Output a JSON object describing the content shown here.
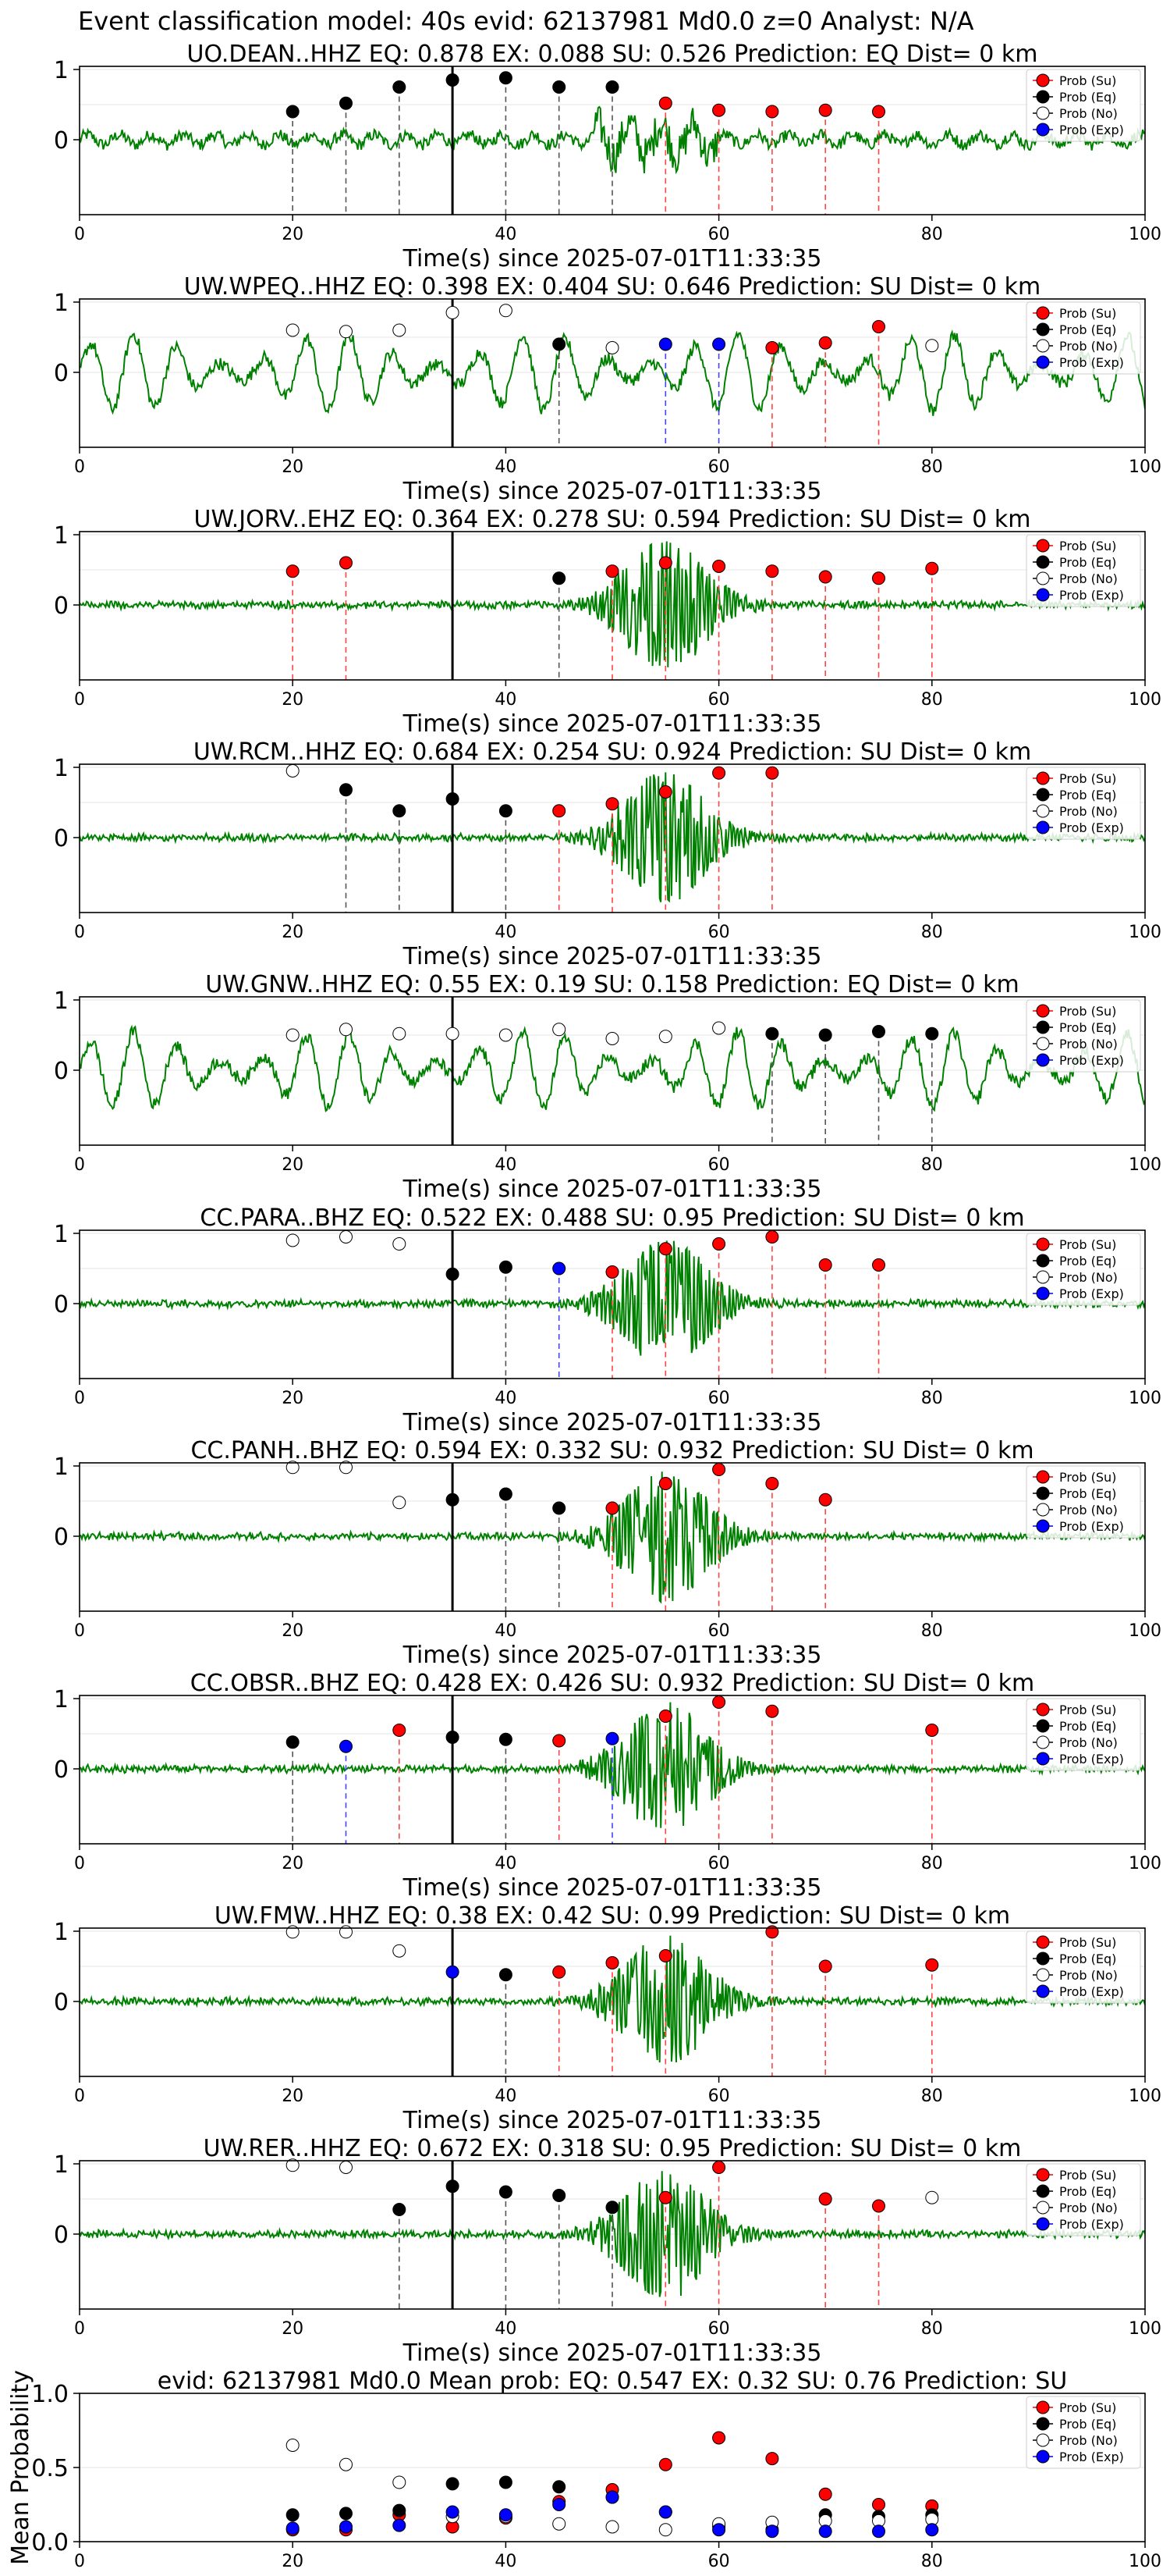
{
  "figure": {
    "suptitle": "Event classification model: 40s evid: 62137981 Md0.0 z=0 Analyst: N/A",
    "xlabel": "Time(s) since 2025-07-01T11:33:35",
    "legend": [
      "Prob (Su)",
      "Prob (Eq)",
      "Prob (No)",
      "Prob (Exp)"
    ],
    "colors": {
      "su": "#ff0000",
      "eq": "#000000",
      "no": "#ffffff",
      "exp": "#0000ff",
      "trace": "#008000"
    }
  },
  "chart_data": [
    {
      "type": "scatter",
      "station": "UO.DEAN..HHZ",
      "title": "UO.DEAN..HHZ   EQ: 0.878  EX: 0.088  SU: 0.526   Prediction: EQ    Dist= 0 km",
      "trace_style": "noisy",
      "xlim": [
        0,
        100
      ],
      "yticks": [
        0,
        1
      ],
      "xticks": [
        0,
        20,
        40,
        60,
        80,
        100
      ],
      "vline_solid": 35,
      "points": [
        {
          "x": 20,
          "y": 0.4,
          "c": "eq"
        },
        {
          "x": 25,
          "y": 0.52,
          "c": "eq"
        },
        {
          "x": 30,
          "y": 0.75,
          "c": "eq"
        },
        {
          "x": 35,
          "y": 0.85,
          "c": "eq"
        },
        {
          "x": 40,
          "y": 0.88,
          "c": "eq"
        },
        {
          "x": 45,
          "y": 0.75,
          "c": "eq"
        },
        {
          "x": 50,
          "y": 0.75,
          "c": "eq"
        },
        {
          "x": 55,
          "y": 0.52,
          "c": "su"
        },
        {
          "x": 60,
          "y": 0.42,
          "c": "su"
        },
        {
          "x": 65,
          "y": 0.4,
          "c": "su"
        },
        {
          "x": 70,
          "y": 0.42,
          "c": "su"
        },
        {
          "x": 75,
          "y": 0.4,
          "c": "su"
        }
      ]
    },
    {
      "type": "scatter",
      "station": "UW.WPEQ..HHZ",
      "title": "UW.WPEQ..HHZ   EQ: 0.398  EX: 0.404  SU: 0.646   Prediction: SU    Dist= 0 km",
      "trace_style": "oscillating",
      "xlim": [
        0,
        100
      ],
      "yticks": [
        0,
        1
      ],
      "xticks": [
        0,
        20,
        40,
        60,
        80,
        100
      ],
      "vline_solid": 35,
      "points": [
        {
          "x": 20,
          "y": 0.6,
          "c": "no"
        },
        {
          "x": 25,
          "y": 0.58,
          "c": "no"
        },
        {
          "x": 30,
          "y": 0.6,
          "c": "no"
        },
        {
          "x": 35,
          "y": 0.85,
          "c": "no"
        },
        {
          "x": 40,
          "y": 0.88,
          "c": "no"
        },
        {
          "x": 45,
          "y": 0.4,
          "c": "eq"
        },
        {
          "x": 50,
          "y": 0.35,
          "c": "no"
        },
        {
          "x": 55,
          "y": 0.4,
          "c": "exp"
        },
        {
          "x": 60,
          "y": 0.4,
          "c": "exp"
        },
        {
          "x": 65,
          "y": 0.35,
          "c": "su"
        },
        {
          "x": 70,
          "y": 0.42,
          "c": "su"
        },
        {
          "x": 75,
          "y": 0.65,
          "c": "su"
        },
        {
          "x": 80,
          "y": 0.38,
          "c": "no"
        }
      ]
    },
    {
      "type": "scatter",
      "station": "UW.JORV..EHZ",
      "title": "UW.JORV..EHZ   EQ: 0.364  EX: 0.278  SU: 0.594   Prediction: SU    Dist= 0 km",
      "trace_style": "burst",
      "xlim": [
        0,
        100
      ],
      "yticks": [
        0,
        1
      ],
      "xticks": [
        0,
        20,
        40,
        60,
        80,
        100
      ],
      "vline_solid": 35,
      "points": [
        {
          "x": 20,
          "y": 0.48,
          "c": "su"
        },
        {
          "x": 25,
          "y": 0.6,
          "c": "su"
        },
        {
          "x": 45,
          "y": 0.38,
          "c": "eq"
        },
        {
          "x": 50,
          "y": 0.48,
          "c": "su"
        },
        {
          "x": 55,
          "y": 0.6,
          "c": "su"
        },
        {
          "x": 60,
          "y": 0.55,
          "c": "su"
        },
        {
          "x": 65,
          "y": 0.48,
          "c": "su"
        },
        {
          "x": 70,
          "y": 0.4,
          "c": "su"
        },
        {
          "x": 75,
          "y": 0.38,
          "c": "su"
        },
        {
          "x": 80,
          "y": 0.52,
          "c": "su"
        }
      ]
    },
    {
      "type": "scatter",
      "station": "UW.RCM..HHZ",
      "title": "UW.RCM..HHZ   EQ: 0.684  EX: 0.254  SU: 0.924   Prediction: SU    Dist= 0 km",
      "trace_style": "burst",
      "xlim": [
        0,
        100
      ],
      "yticks": [
        0,
        1
      ],
      "xticks": [
        0,
        20,
        40,
        60,
        80,
        100
      ],
      "vline_solid": 35,
      "points": [
        {
          "x": 20,
          "y": 0.95,
          "c": "no"
        },
        {
          "x": 25,
          "y": 0.68,
          "c": "eq"
        },
        {
          "x": 30,
          "y": 0.38,
          "c": "eq"
        },
        {
          "x": 35,
          "y": 0.55,
          "c": "eq"
        },
        {
          "x": 40,
          "y": 0.38,
          "c": "eq"
        },
        {
          "x": 45,
          "y": 0.38,
          "c": "su"
        },
        {
          "x": 50,
          "y": 0.48,
          "c": "su"
        },
        {
          "x": 55,
          "y": 0.65,
          "c": "su"
        },
        {
          "x": 60,
          "y": 0.92,
          "c": "su"
        },
        {
          "x": 65,
          "y": 0.92,
          "c": "su"
        }
      ]
    },
    {
      "type": "scatter",
      "station": "UW.GNW..HHZ",
      "title": "UW.GNW..HHZ   EQ: 0.55  EX: 0.19  SU: 0.158   Prediction: EQ    Dist= 0 km",
      "trace_style": "oscillating",
      "xlim": [
        0,
        100
      ],
      "yticks": [
        0,
        1
      ],
      "xticks": [
        0,
        20,
        40,
        60,
        80,
        100
      ],
      "vline_solid": 35,
      "points": [
        {
          "x": 20,
          "y": 0.5,
          "c": "no"
        },
        {
          "x": 25,
          "y": 0.58,
          "c": "no"
        },
        {
          "x": 30,
          "y": 0.52,
          "c": "no"
        },
        {
          "x": 35,
          "y": 0.52,
          "c": "no"
        },
        {
          "x": 40,
          "y": 0.5,
          "c": "no"
        },
        {
          "x": 45,
          "y": 0.58,
          "c": "no"
        },
        {
          "x": 50,
          "y": 0.45,
          "c": "no"
        },
        {
          "x": 55,
          "y": 0.48,
          "c": "no"
        },
        {
          "x": 60,
          "y": 0.6,
          "c": "no"
        },
        {
          "x": 65,
          "y": 0.52,
          "c": "eq"
        },
        {
          "x": 70,
          "y": 0.5,
          "c": "eq"
        },
        {
          "x": 75,
          "y": 0.55,
          "c": "eq"
        },
        {
          "x": 80,
          "y": 0.52,
          "c": "eq"
        }
      ]
    },
    {
      "type": "scatter",
      "station": "CC.PARA..BHZ",
      "title": "CC.PARA..BHZ   EQ: 0.522  EX: 0.488  SU: 0.95   Prediction: SU    Dist= 0 km",
      "trace_style": "burst",
      "xlim": [
        0,
        100
      ],
      "yticks": [
        0,
        1
      ],
      "xticks": [
        0,
        20,
        40,
        60,
        80,
        100
      ],
      "vline_solid": 35,
      "points": [
        {
          "x": 20,
          "y": 0.9,
          "c": "no"
        },
        {
          "x": 25,
          "y": 0.95,
          "c": "no"
        },
        {
          "x": 30,
          "y": 0.85,
          "c": "no"
        },
        {
          "x": 35,
          "y": 0.42,
          "c": "eq"
        },
        {
          "x": 40,
          "y": 0.52,
          "c": "eq"
        },
        {
          "x": 45,
          "y": 0.5,
          "c": "exp"
        },
        {
          "x": 50,
          "y": 0.45,
          "c": "su"
        },
        {
          "x": 55,
          "y": 0.78,
          "c": "su"
        },
        {
          "x": 60,
          "y": 0.85,
          "c": "su"
        },
        {
          "x": 65,
          "y": 0.95,
          "c": "su"
        },
        {
          "x": 70,
          "y": 0.55,
          "c": "su"
        },
        {
          "x": 75,
          "y": 0.55,
          "c": "su"
        }
      ]
    },
    {
      "type": "scatter",
      "station": "CC.PANH..BHZ",
      "title": "CC.PANH..BHZ   EQ: 0.594  EX: 0.332  SU: 0.932   Prediction: SU    Dist= 0 km",
      "trace_style": "burst",
      "xlim": [
        0,
        100
      ],
      "yticks": [
        0,
        1
      ],
      "xticks": [
        0,
        20,
        40,
        60,
        80,
        100
      ],
      "vline_solid": 35,
      "points": [
        {
          "x": 20,
          "y": 0.98,
          "c": "no"
        },
        {
          "x": 25,
          "y": 0.98,
          "c": "no"
        },
        {
          "x": 30,
          "y": 0.48,
          "c": "no"
        },
        {
          "x": 35,
          "y": 0.52,
          "c": "eq"
        },
        {
          "x": 40,
          "y": 0.6,
          "c": "eq"
        },
        {
          "x": 45,
          "y": 0.4,
          "c": "eq"
        },
        {
          "x": 50,
          "y": 0.4,
          "c": "su"
        },
        {
          "x": 55,
          "y": 0.75,
          "c": "su"
        },
        {
          "x": 60,
          "y": 0.95,
          "c": "su"
        },
        {
          "x": 65,
          "y": 0.75,
          "c": "su"
        },
        {
          "x": 70,
          "y": 0.52,
          "c": "su"
        }
      ]
    },
    {
      "type": "scatter",
      "station": "CC.OBSR..BHZ",
      "title": "CC.OBSR..BHZ   EQ: 0.428  EX: 0.426  SU: 0.932   Prediction: SU    Dist= 0 km",
      "trace_style": "burst",
      "xlim": [
        0,
        100
      ],
      "yticks": [
        0,
        1
      ],
      "xticks": [
        0,
        20,
        40,
        60,
        80,
        100
      ],
      "vline_solid": 35,
      "points": [
        {
          "x": 20,
          "y": 0.38,
          "c": "eq"
        },
        {
          "x": 25,
          "y": 0.32,
          "c": "exp"
        },
        {
          "x": 30,
          "y": 0.55,
          "c": "su"
        },
        {
          "x": 35,
          "y": 0.45,
          "c": "eq"
        },
        {
          "x": 40,
          "y": 0.42,
          "c": "eq"
        },
        {
          "x": 45,
          "y": 0.4,
          "c": "su"
        },
        {
          "x": 50,
          "y": 0.43,
          "c": "exp"
        },
        {
          "x": 55,
          "y": 0.75,
          "c": "su"
        },
        {
          "x": 60,
          "y": 0.95,
          "c": "su"
        },
        {
          "x": 65,
          "y": 0.82,
          "c": "su"
        },
        {
          "x": 80,
          "y": 0.55,
          "c": "su"
        }
      ]
    },
    {
      "type": "scatter",
      "station": "UW.FMW..HHZ",
      "title": "UW.FMW..HHZ   EQ: 0.38  EX: 0.42  SU: 0.99   Prediction: SU    Dist= 0 km",
      "trace_style": "burst",
      "xlim": [
        0,
        100
      ],
      "yticks": [
        0,
        1
      ],
      "xticks": [
        0,
        20,
        40,
        60,
        80,
        100
      ],
      "vline_solid": 35,
      "points": [
        {
          "x": 20,
          "y": 0.99,
          "c": "no"
        },
        {
          "x": 25,
          "y": 0.99,
          "c": "no"
        },
        {
          "x": 30,
          "y": 0.72,
          "c": "no"
        },
        {
          "x": 35,
          "y": 0.42,
          "c": "exp"
        },
        {
          "x": 40,
          "y": 0.38,
          "c": "eq"
        },
        {
          "x": 45,
          "y": 0.42,
          "c": "su"
        },
        {
          "x": 50,
          "y": 0.55,
          "c": "su"
        },
        {
          "x": 55,
          "y": 0.65,
          "c": "su"
        },
        {
          "x": 65,
          "y": 0.99,
          "c": "su"
        },
        {
          "x": 70,
          "y": 0.5,
          "c": "su"
        },
        {
          "x": 80,
          "y": 0.52,
          "c": "su"
        }
      ]
    },
    {
      "type": "scatter",
      "station": "UW.RER..HHZ",
      "title": "UW.RER..HHZ   EQ: 0.672  EX: 0.318  SU: 0.95   Prediction: SU    Dist= 0 km",
      "trace_style": "burst",
      "xlim": [
        0,
        100
      ],
      "yticks": [
        0,
        1
      ],
      "xticks": [
        0,
        20,
        40,
        60,
        80,
        100
      ],
      "vline_solid": 35,
      "points": [
        {
          "x": 20,
          "y": 0.98,
          "c": "no"
        },
        {
          "x": 25,
          "y": 0.95,
          "c": "no"
        },
        {
          "x": 30,
          "y": 0.35,
          "c": "eq"
        },
        {
          "x": 35,
          "y": 0.68,
          "c": "eq"
        },
        {
          "x": 40,
          "y": 0.6,
          "c": "eq"
        },
        {
          "x": 45,
          "y": 0.55,
          "c": "eq"
        },
        {
          "x": 50,
          "y": 0.38,
          "c": "eq"
        },
        {
          "x": 55,
          "y": 0.52,
          "c": "su"
        },
        {
          "x": 60,
          "y": 0.95,
          "c": "su"
        },
        {
          "x": 70,
          "y": 0.5,
          "c": "su"
        },
        {
          "x": 75,
          "y": 0.4,
          "c": "su"
        },
        {
          "x": 80,
          "y": 0.52,
          "c": "no"
        }
      ]
    },
    {
      "type": "scatter",
      "station": "mean",
      "title": "evid: 62137981  Md0.0   Mean prob:   EQ: 0.547  EX: 0.32  SU: 0.76   Prediction: SU",
      "ylabel": "Mean Probability",
      "xlim": [
        0,
        100
      ],
      "ylim": [
        0,
        1
      ],
      "yticks": [
        0.0,
        0.5,
        1.0
      ],
      "ytick_labels": [
        "0.0",
        "0.5",
        "1.0"
      ],
      "xticks": [
        0,
        20,
        40,
        60,
        80,
        100
      ],
      "series": [
        {
          "name": "Prob (Su)",
          "c": "su",
          "x": [
            20,
            25,
            30,
            35,
            40,
            45,
            50,
            55,
            60,
            65,
            70,
            75,
            80
          ],
          "y": [
            0.08,
            0.08,
            0.18,
            0.1,
            0.16,
            0.27,
            0.35,
            0.52,
            0.7,
            0.56,
            0.32,
            0.25,
            0.24
          ]
        },
        {
          "name": "Prob (Eq)",
          "c": "eq",
          "x": [
            20,
            25,
            30,
            35,
            40,
            45,
            50,
            55,
            60,
            65,
            70,
            75,
            80
          ],
          "y": [
            0.18,
            0.19,
            0.21,
            0.39,
            0.4,
            0.37,
            0.3,
            0.2,
            0.1,
            0.08,
            0.18,
            0.17,
            0.18
          ]
        },
        {
          "name": "Prob (No)",
          "c": "no",
          "x": [
            20,
            25,
            30,
            35,
            40,
            45,
            50,
            55,
            60,
            65,
            70,
            75,
            80
          ],
          "y": [
            0.65,
            0.52,
            0.4,
            0.17,
            0.17,
            0.12,
            0.1,
            0.08,
            0.12,
            0.13,
            0.14,
            0.14,
            0.15
          ]
        },
        {
          "name": "Prob (Exp)",
          "c": "exp",
          "x": [
            20,
            25,
            30,
            35,
            40,
            45,
            50,
            55,
            60,
            65,
            70,
            75,
            80
          ],
          "y": [
            0.09,
            0.1,
            0.11,
            0.2,
            0.18,
            0.25,
            0.3,
            0.2,
            0.08,
            0.07,
            0.07,
            0.07,
            0.08
          ]
        }
      ]
    }
  ]
}
